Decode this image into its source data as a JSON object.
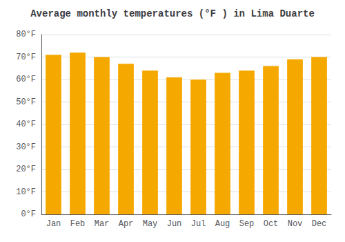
{
  "chart_data": {
    "type": "bar",
    "title": "Average monthly temperatures (°F ) in Lima Duarte",
    "categories": [
      "Jan",
      "Feb",
      "Mar",
      "Apr",
      "May",
      "Jun",
      "Jul",
      "Aug",
      "Sep",
      "Oct",
      "Nov",
      "Dec"
    ],
    "values": [
      71,
      72,
      70,
      67,
      64,
      61,
      60,
      63,
      64,
      66,
      69,
      70
    ],
    "color": "#F5A800",
    "ylim": [
      0,
      80
    ],
    "yticks": [
      {
        "value": 0,
        "label": "0°F"
      },
      {
        "value": 10,
        "label": "10°F"
      },
      {
        "value": 20,
        "label": "20°F"
      },
      {
        "value": 30,
        "label": "30°F"
      },
      {
        "value": 40,
        "label": "40°F"
      },
      {
        "value": 50,
        "label": "50°F"
      },
      {
        "value": 60,
        "label": "60°F"
      },
      {
        "value": 70,
        "label": "70°F"
      },
      {
        "value": 80,
        "label": "80°F"
      }
    ],
    "grid": true
  }
}
